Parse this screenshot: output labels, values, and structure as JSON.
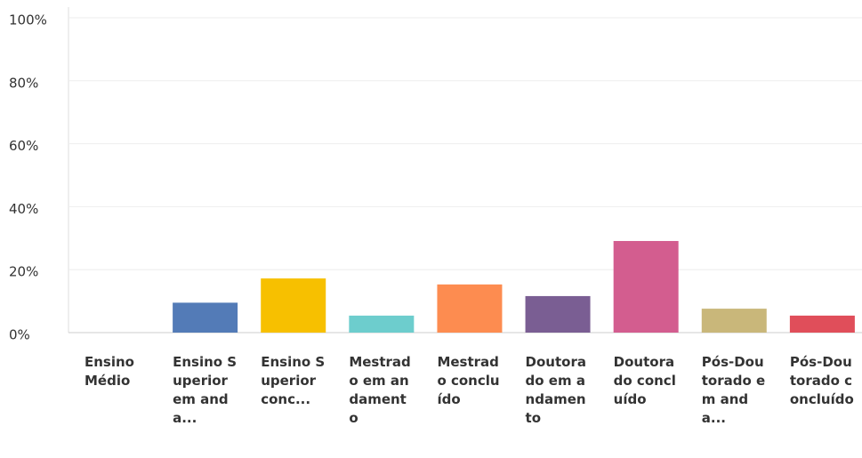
{
  "chart_data": {
    "type": "bar",
    "categories": [
      "Ensino Médio",
      "Ensino Superior em anda...",
      "Ensino Superior conc...",
      "Mestrado em andamento",
      "Mestrado concluído",
      "Doutorado em andamento",
      "Doutorado concluído",
      "Pós-Doutorado em anda...",
      "Pós-Doutorado concluído"
    ],
    "values": [
      0,
      9.5,
      17.2,
      5.4,
      15.3,
      11.6,
      29.1,
      7.6,
      5.4
    ],
    "colors": [
      "#537bb7",
      "#537bb7",
      "#f7c000",
      "#6dcdcd",
      "#fd8c50",
      "#7a5e93",
      "#d35d8f",
      "#c9b77a",
      "#e04e5a"
    ],
    "ylim": [
      0,
      100
    ],
    "yticks": [
      {
        "value": 0,
        "label": "0%"
      },
      {
        "value": 20,
        "label": "20%"
      },
      {
        "value": 40,
        "label": "40%"
      },
      {
        "value": 60,
        "label": "60%"
      },
      {
        "value": 80,
        "label": "80%"
      },
      {
        "value": 100,
        "label": "100%"
      }
    ],
    "grid": true
  }
}
